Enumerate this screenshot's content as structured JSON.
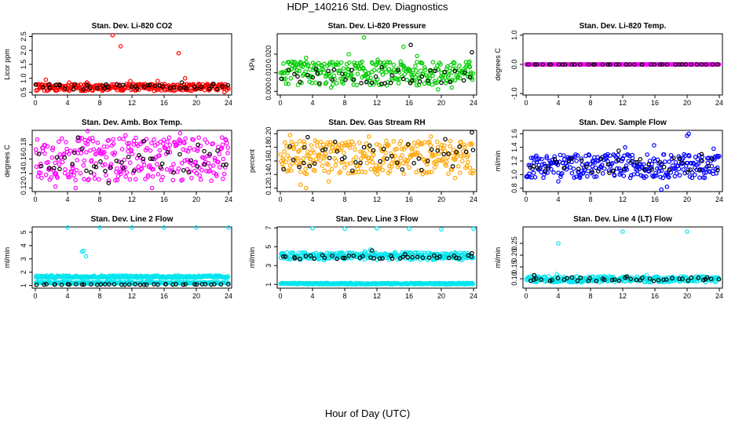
{
  "figure": {
    "title": "HDP_140216  Std. Dev. Diagnostics",
    "xlabel": "Hour of Day (UTC)"
  },
  "chart_data": [
    {
      "type": "scatter",
      "title": "Stan. Dev. Li-820 CO2",
      "ylabel": "Licor ppm",
      "xlim": [
        0,
        24
      ],
      "ylim": [
        0.4,
        2.6
      ],
      "xticks": [
        "0",
        "4",
        "8",
        "12",
        "16",
        "20",
        "24"
      ],
      "yticks": [
        "0.5",
        "1.0",
        "1.5",
        "2.0",
        "2.5"
      ],
      "ytick_values": [
        0.5,
        1.0,
        1.5,
        2.0,
        2.5
      ],
      "series": [
        {
          "color": "#ff0000",
          "band": [
            0.55,
            0.8
          ],
          "density": "dense",
          "points": [
            [
              1.3,
              0.95
            ],
            [
              4.2,
              0.85
            ],
            [
              9.6,
              2.55
            ],
            [
              10.6,
              2.15
            ],
            [
              11.8,
              0.9
            ],
            [
              17.8,
              1.9
            ],
            [
              18.6,
              1.0
            ],
            [
              20.3,
              0.8
            ],
            [
              23.5,
              0.5
            ],
            [
              6.4,
              0.85
            ],
            [
              15.2,
              0.9
            ]
          ]
        },
        {
          "color": "#000000",
          "band": [
            0.6,
            0.78
          ],
          "density": "sparse",
          "points": [
            [
              3.0,
              0.75
            ],
            [
              8.8,
              0.78
            ],
            [
              14.2,
              0.75
            ],
            [
              18.2,
              0.85
            ],
            [
              22.1,
              0.8
            ]
          ]
        }
      ]
    },
    {
      "type": "scatter",
      "title": "Stan. Dev. Li-820 Pressure",
      "ylabel": "kPa",
      "xlim": [
        0,
        24
      ],
      "ylim": [
        -0.002,
        0.031
      ],
      "xticks": [
        "0",
        "4",
        "8",
        "12",
        "16",
        "20",
        "24"
      ],
      "yticks": [
        "0.000",
        "0.010",
        "0.020"
      ],
      "ytick_values": [
        0.0,
        0.01,
        0.02
      ],
      "series": [
        {
          "color": "#00cc00",
          "band": [
            0.003,
            0.016
          ],
          "density": "dense",
          "points": [
            [
              10.4,
              0.029
            ],
            [
              15.3,
              0.024
            ],
            [
              3.2,
              0.018
            ],
            [
              17.0,
              0.019
            ],
            [
              8.5,
              0.02
            ],
            [
              12.1,
              0.017
            ],
            [
              19.6,
              0.001
            ],
            [
              1.0,
              0.004
            ],
            [
              6.3,
              0.002
            ],
            [
              23.5,
              0.016
            ],
            [
              21.3,
              0.002
            ]
          ]
        },
        {
          "color": "#000000",
          "band": [
            0.004,
            0.012
          ],
          "density": "sparse",
          "points": [
            [
              16.2,
              0.025
            ],
            [
              23.8,
              0.021
            ],
            [
              12.6,
              0.013
            ],
            [
              4.4,
              0.012
            ]
          ]
        }
      ]
    },
    {
      "type": "scatter",
      "title": "Stan. Dev. Li-820 Temp.",
      "ylabel": "degrees C",
      "xlim": [
        0,
        24
      ],
      "ylim": [
        -1.05,
        1.05
      ],
      "xticks": [
        "0",
        "4",
        "8",
        "12",
        "16",
        "20",
        "24"
      ],
      "yticks": [
        "-1.0",
        "0.0",
        "1.0"
      ],
      "ytick_values": [
        -1.0,
        0.0,
        1.0
      ],
      "series": [
        {
          "color": "#ff00ff",
          "band": [
            0.0,
            0.0
          ],
          "density": "dense",
          "points": []
        },
        {
          "color": "#000000",
          "band": [
            0.0,
            0.0
          ],
          "density": "sparse",
          "points": []
        }
      ]
    },
    {
      "type": "scatter",
      "title": "Stan. Dev. Amb. Box Temp.",
      "ylabel": "degrees C",
      "xlim": [
        0,
        24
      ],
      "ylim": [
        0.115,
        0.2
      ],
      "xticks": [
        "0",
        "4",
        "8",
        "12",
        "16",
        "20",
        "24"
      ],
      "yticks": [
        "0.12",
        "0.14",
        "0.16",
        "0.18"
      ],
      "ytick_values": [
        0.12,
        0.14,
        0.16,
        0.18
      ],
      "series": [
        {
          "color": "#ff00ff",
          "band": [
            0.13,
            0.19
          ],
          "density": "dense",
          "points": [
            [
              6.5,
              0.199
            ],
            [
              11.2,
              0.193
            ],
            [
              18.0,
              0.196
            ],
            [
              23.2,
              0.19
            ],
            [
              5.0,
              0.12
            ],
            [
              14.5,
              0.12
            ],
            [
              2.5,
              0.122
            ]
          ]
        },
        {
          "color": "#000000",
          "band": [
            0.14,
            0.175
          ],
          "density": "sparse",
          "points": [
            [
              5.3,
              0.19
            ],
            [
              13.5,
              0.185
            ],
            [
              7.3,
              0.15
            ],
            [
              20.2,
              0.18
            ],
            [
              9.1,
              0.127
            ]
          ]
        }
      ]
    },
    {
      "type": "scatter",
      "title": "Stan. Dev. Gas Stream RH",
      "ylabel": "percent",
      "xlim": [
        0,
        24
      ],
      "ylim": [
        0.115,
        0.205
      ],
      "xticks": [
        "0",
        "4",
        "8",
        "12",
        "16",
        "20",
        "24"
      ],
      "yticks": [
        "0.12",
        "0.14",
        "0.16",
        "0.18",
        "0.20"
      ],
      "ytick_values": [
        0.12,
        0.14,
        0.16,
        0.18,
        0.2
      ],
      "series": [
        {
          "color": "#ffa500",
          "band": [
            0.14,
            0.19
          ],
          "density": "dense",
          "points": [
            [
              3.2,
              0.12
            ],
            [
              2.5,
              0.125
            ],
            [
              1.2,
              0.198
            ],
            [
              11.0,
              0.196
            ],
            [
              18.7,
              0.196
            ],
            [
              6.0,
              0.13
            ],
            [
              21.7,
              0.135
            ]
          ]
        },
        {
          "color": "#000000",
          "band": [
            0.145,
            0.185
          ],
          "density": "sparse",
          "points": [
            [
              23.8,
              0.202
            ],
            [
              3.4,
              0.195
            ],
            [
              6.8,
              0.188
            ],
            [
              20.5,
              0.192
            ]
          ]
        }
      ]
    },
    {
      "type": "scatter",
      "title": "Stan. Dev. Sample Flow",
      "ylabel": "ml/min",
      "xlim": [
        0,
        24
      ],
      "ylim": [
        0.75,
        1.65
      ],
      "xticks": [
        "0",
        "4",
        "8",
        "12",
        "16",
        "20",
        "24"
      ],
      "yticks": [
        "0.8",
        "1.0",
        "1.2",
        "1.4",
        "1.6"
      ],
      "ytick_values": [
        0.8,
        1.0,
        1.2,
        1.4,
        1.6
      ],
      "series": [
        {
          "color": "#0000ff",
          "band": [
            0.95,
            1.3
          ],
          "density": "dense",
          "points": [
            [
              20.0,
              1.57
            ],
            [
              20.2,
              1.6
            ],
            [
              16.8,
              0.78
            ],
            [
              17.5,
              0.82
            ],
            [
              4.0,
              0.9
            ],
            [
              12.3,
              1.4
            ],
            [
              15.9,
              1.43
            ],
            [
              23.3,
              1.38
            ]
          ]
        },
        {
          "color": "#000000",
          "band": [
            1.0,
            1.25
          ],
          "density": "sparse",
          "points": [
            [
              11.5,
              1.35
            ],
            [
              21.8,
              1.3
            ]
          ]
        }
      ]
    },
    {
      "type": "scatter",
      "title": "Stan. Dev. Line 2 Flow",
      "ylabel": "ml/min",
      "xlim": [
        0,
        24
      ],
      "ylim": [
        0.8,
        5.4
      ],
      "xticks": [
        "0",
        "4",
        "8",
        "12",
        "16",
        "20",
        "24"
      ],
      "yticks": [
        "1",
        "2",
        "3",
        "4",
        "5"
      ],
      "ytick_values": [
        1,
        2,
        3,
        4,
        5
      ],
      "series": [
        {
          "color": "#00e5ee",
          "band": [
            1.15,
            1.25
          ],
          "density": "dense",
          "points": [
            [
              4.0,
              5.35
            ],
            [
              8.0,
              5.35
            ],
            [
              12.0,
              5.35
            ],
            [
              16.0,
              5.35
            ],
            [
              20.0,
              5.35
            ],
            [
              24.0,
              5.35
            ],
            [
              5.8,
              3.55
            ],
            [
              6.0,
              3.6
            ],
            [
              6.3,
              3.2
            ]
          ]
        },
        {
          "color": "#00e5ee",
          "band": [
            1.55,
            1.75
          ],
          "density": "dense",
          "points": []
        },
        {
          "color": "#000000",
          "band": [
            1.05,
            1.1
          ],
          "density": "sparse",
          "points": []
        }
      ]
    },
    {
      "type": "scatter",
      "title": "Stan. Dev. Line 3 Flow",
      "ylabel": "ml/min",
      "xlim": [
        0,
        24
      ],
      "ylim": [
        0.6,
        7.1
      ],
      "xticks": [
        "0",
        "4",
        "8",
        "12",
        "16",
        "20",
        "24"
      ],
      "yticks": [
        "1",
        "3",
        "5",
        "7"
      ],
      "ytick_values": [
        1,
        3,
        5,
        7
      ],
      "series": [
        {
          "color": "#00e5ee",
          "band": [
            3.6,
            4.4
          ],
          "density": "dense",
          "points": [
            [
              4.0,
              6.95
            ],
            [
              8.0,
              6.9
            ],
            [
              12.0,
              6.95
            ],
            [
              16.0,
              6.9
            ],
            [
              20.0,
              6.85
            ],
            [
              24.0,
              6.9
            ],
            [
              11.2,
              4.7
            ],
            [
              10.5,
              4.5
            ],
            [
              20.2,
              3.9
            ]
          ]
        },
        {
          "color": "#00e5ee",
          "band": [
            1.0,
            1.15
          ],
          "density": "dense",
          "points": []
        },
        {
          "color": "#000000",
          "band": [
            3.7,
            4.1
          ],
          "density": "sparse",
          "points": [
            [
              11.4,
              4.6
            ],
            [
              15.5,
              4.2
            ],
            [
              23.8,
              4.3
            ]
          ]
        }
      ]
    },
    {
      "type": "scatter",
      "title": "Stan. Dev. Line 4 (LT) Flow",
      "ylabel": "ml/min",
      "xlim": [
        0,
        24
      ],
      "ylim": [
        0.06,
        0.32
      ],
      "xticks": [
        "0",
        "4",
        "8",
        "12",
        "16",
        "20",
        "24"
      ],
      "yticks": [
        "0.10",
        "0.15",
        "0.20",
        "0.25"
      ],
      "ytick_values": [
        0.1,
        0.15,
        0.2,
        0.25
      ],
      "series": [
        {
          "color": "#00e5ee",
          "band": [
            0.085,
            0.11
          ],
          "density": "dense",
          "points": [
            [
              4.0,
              0.25
            ],
            [
              12.0,
              0.3
            ],
            [
              20.0,
              0.3
            ],
            [
              3.8,
              0.12
            ],
            [
              15.0,
              0.115
            ]
          ]
        },
        {
          "color": "#000000",
          "band": [
            0.09,
            0.105
          ],
          "density": "sparse",
          "points": [
            [
              1.0,
              0.115
            ],
            [
              12.5,
              0.11
            ],
            [
              22.5,
              0.105
            ]
          ]
        }
      ]
    }
  ]
}
